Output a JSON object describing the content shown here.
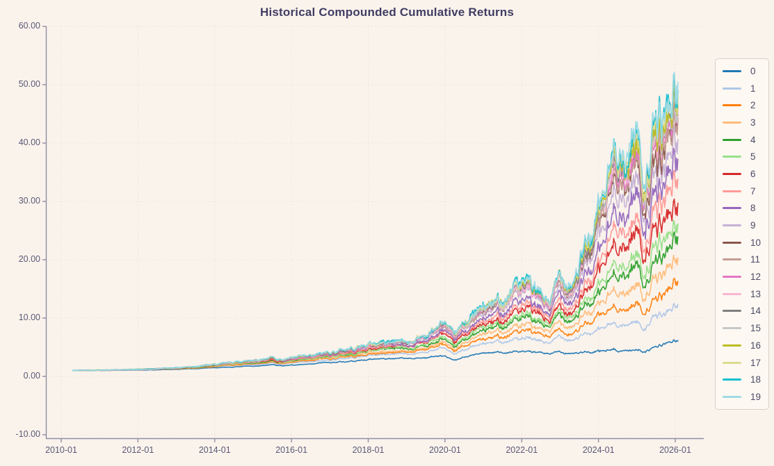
{
  "page": {
    "background": "#faf3ec"
  },
  "chart_data": {
    "type": "line",
    "title": "Historical Compounded Cumulative Returns",
    "grid": "dotted",
    "legend_position": "right-outside",
    "start_value": 1.0,
    "x_axis": {
      "tick_labels": [
        "2010-01",
        "2012-01",
        "2014-01",
        "2016-01",
        "2018-01",
        "2020-01",
        "2022-01",
        "2024-01",
        "2026-01"
      ],
      "tick_years": [
        2010,
        2012,
        2014,
        2016,
        2018,
        2020,
        2022,
        2024,
        2026
      ],
      "range_years": [
        2009.6,
        2026.75
      ]
    },
    "y_axis": {
      "tick_labels": [
        "60.00",
        "50.00",
        "40.00",
        "30.00",
        "20.00",
        "10.00",
        "0.00",
        "-10.00"
      ],
      "tick_values": [
        60,
        50,
        40,
        30,
        20,
        10,
        0,
        -10
      ],
      "range": [
        -10,
        60
      ]
    },
    "anchor_years": [
      2010.3,
      2011,
      2012,
      2013,
      2014,
      2014.7,
      2015,
      2015.45,
      2015.75,
      2016.1,
      2016.55,
      2017,
      2018,
      2018.75,
      2019,
      2019.5,
      2020,
      2020.21,
      2020.6,
      2021,
      2021.4,
      2021.85,
      2022.2,
      2022.55,
      2022.75,
      2023,
      2023.3,
      2023.6,
      2024,
      2024.35,
      2024.55,
      2024.7,
      2024.85,
      2025,
      2025.17,
      2025.45,
      2025.7,
      2025.95,
      2026.08
    ],
    "series_low_values": [
      1.0,
      1.05,
      1.08,
      1.25,
      1.48,
      1.7,
      1.75,
      1.95,
      1.8,
      1.9,
      2.05,
      2.4,
      2.85,
      3.1,
      3.0,
      3.2,
      3.55,
      2.6,
      3.45,
      3.9,
      4.05,
      4.15,
      4.1,
      3.95,
      3.9,
      4.1,
      4.05,
      4.1,
      4.3,
      4.5,
      4.45,
      4.4,
      4.55,
      4.6,
      4.35,
      4.9,
      5.4,
      6.2,
      6.4
    ],
    "series_high_values": [
      1.0,
      1.1,
      1.18,
      1.5,
      2.05,
      2.6,
      2.8,
      3.3,
      2.9,
      3.1,
      3.45,
      4.2,
      5.5,
      6.3,
      5.9,
      7.2,
      9.3,
      6.4,
      9.8,
      11.5,
      12.8,
      16.3,
      14.8,
      13.3,
      13.0,
      17.3,
      17.0,
      20.5,
      27.5,
      36.0,
      43.0,
      35.5,
      43.0,
      44.0,
      35.5,
      41.0,
      43.5,
      50.5,
      50.0
    ],
    "interpolation": "series i value(t) = low(t) * (high(t)/low(t))^u_i, log-linear between anchors; series 0 follows series_low_values, series 19 follows series_high_values",
    "series": [
      {
        "name": "0",
        "color": "#1f77b4",
        "u": 0.0,
        "end_value": 6.4
      },
      {
        "name": "1",
        "color": "#aec7e8",
        "u": 0.326,
        "end_value": 12.5
      },
      {
        "name": "2",
        "color": "#ff7f0e",
        "u": 0.452,
        "end_value": 16.2
      },
      {
        "name": "3",
        "color": "#ffbb78",
        "u": 0.554,
        "end_value": 20.0
      },
      {
        "name": "4",
        "color": "#2ca02c",
        "u": 0.631,
        "end_value": 23.4
      },
      {
        "name": "5",
        "color": "#98df8a",
        "u": 0.691,
        "end_value": 26.5
      },
      {
        "name": "6",
        "color": "#d62728",
        "u": 0.751,
        "end_value": 30.0
      },
      {
        "name": "7",
        "color": "#ff9896",
        "u": 0.798,
        "end_value": 33.0
      },
      {
        "name": "8",
        "color": "#9467bd",
        "u": 0.846,
        "end_value": 36.4
      },
      {
        "name": "9",
        "color": "#c5b0d5",
        "u": 0.891,
        "end_value": 40.0
      },
      {
        "name": "10",
        "color": "#8c564b",
        "u": 0.932,
        "end_value": 43.5
      },
      {
        "name": "11",
        "color": "#c49c94",
        "u": 0.943,
        "end_value": 44.5
      },
      {
        "name": "12",
        "color": "#e377c2",
        "u": 0.954,
        "end_value": 45.5
      },
      {
        "name": "13",
        "color": "#f7b6d2",
        "u": 0.961,
        "end_value": 46.2
      },
      {
        "name": "14",
        "color": "#7f7f7f",
        "u": 0.968,
        "end_value": 46.8
      },
      {
        "name": "15",
        "color": "#c7c7c7",
        "u": 0.974,
        "end_value": 47.4
      },
      {
        "name": "16",
        "color": "#bcbd22",
        "u": 0.98,
        "end_value": 48.0
      },
      {
        "name": "17",
        "color": "#dbdb8d",
        "u": 0.986,
        "end_value": 48.6
      },
      {
        "name": "18",
        "color": "#17becf",
        "u": 0.993,
        "end_value": 49.3
      },
      {
        "name": "19",
        "color": "#9edae5",
        "u": 1.0,
        "end_value": 50.0
      }
    ],
    "style": {
      "background": "#faf3ec",
      "grid_color": "#f0ddcf",
      "spine_color": "#8e8ca3",
      "title_color": "#403d63",
      "tick_label_color": "#5a5876",
      "legend_bg": "#fdf8f2",
      "legend_border": "#d7d1c6"
    }
  }
}
